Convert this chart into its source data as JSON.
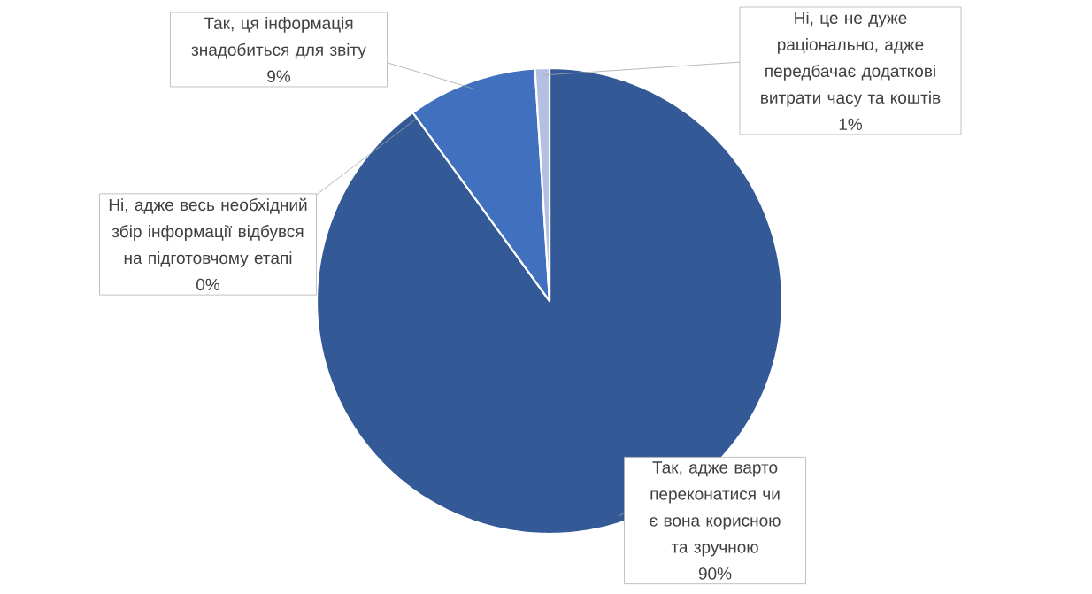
{
  "chart_data": {
    "type": "pie",
    "categories": [
      "Так, адже варто переконатися чи є вона корисною та зручною",
      "Ні, адже весь необхідний збір інформації відбувся на підготовчому етапі",
      "Так, ця інформація знадобиться для звіту",
      "Ні, це не дуже раціонально, адже передбачає додаткові витрати часу та коштів"
    ],
    "values": [
      90,
      0,
      9,
      1
    ],
    "colors": [
      "#335a97",
      "#2f5597",
      "#4170bf",
      "#b4c0e3"
    ],
    "value_labels": [
      "90%",
      "0%",
      "9%",
      "1%"
    ]
  }
}
